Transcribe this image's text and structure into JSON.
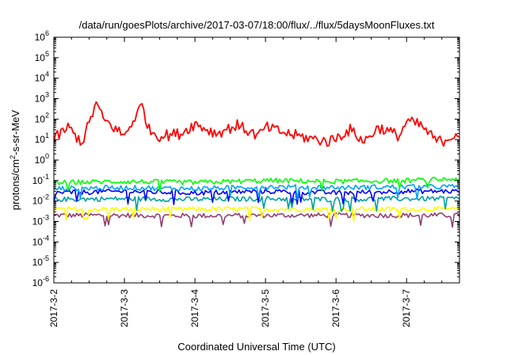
{
  "chart_data": {
    "type": "line",
    "title": "/data/run/goesPlots/archive/2017-03-07/18:00/flux/../flux/5daysMoonFluxes.txt",
    "xlabel": "Coordinated Universal Time (UTC)",
    "ylabel": {
      "base": "protons/cm",
      "sup": "2",
      "rest": "-s-sr-MeV"
    },
    "yscale": "log",
    "ylim_exp": [
      -6,
      6
    ],
    "ytick_labels": [
      {
        "base": "10",
        "exp": "-6"
      },
      {
        "base": "10",
        "exp": "-5"
      },
      {
        "base": "10",
        "exp": "-4"
      },
      {
        "base": "10",
        "exp": "-3"
      },
      {
        "base": "10",
        "exp": "-2"
      },
      {
        "base": "10",
        "exp": "-1"
      },
      {
        "base": "10",
        "exp": "0"
      },
      {
        "base": "10",
        "exp": "1"
      },
      {
        "base": "10",
        "exp": "2"
      },
      {
        "base": "10",
        "exp": "3"
      },
      {
        "base": "10",
        "exp": "4"
      },
      {
        "base": "10",
        "exp": "5"
      },
      {
        "base": "10",
        "exp": "6"
      }
    ],
    "xlim": [
      "2017-03-02",
      "2017-03-07 18:00"
    ],
    "xtick_labels": [
      "2017-3-2",
      "2017-3-3",
      "2017-3-4",
      "2017-3-5",
      "2017-3-6",
      "2017-3-7"
    ],
    "grid": false,
    "legend": "none",
    "series": [
      {
        "color": "#ff0000",
        "t": [
          0,
          0.2,
          0.4,
          0.6,
          0.7,
          1.0,
          1.25,
          1.35,
          1.5,
          1.8,
          2.0,
          2.3,
          2.6,
          2.9,
          3.0,
          3.3,
          3.6,
          3.9,
          4.2,
          4.4,
          4.6,
          4.9,
          5.0,
          5.2,
          5.4,
          5.5,
          5.7,
          5.75
        ],
        "values": [
          10,
          40,
          7,
          600,
          100,
          15,
          500,
          30,
          15,
          20,
          60,
          20,
          50,
          15,
          40,
          20,
          12,
          8,
          30,
          8,
          40,
          15,
          80,
          50,
          10,
          8,
          20,
          18
        ]
      },
      {
        "color": "#00ff00",
        "t": [
          0,
          1,
          2,
          3,
          4,
          5,
          5.75
        ],
        "values": [
          0.08,
          0.09,
          0.08,
          0.1,
          0.09,
          0.1,
          0.12
        ]
      },
      {
        "color": "#00a0ff",
        "t": [
          0,
          1,
          2,
          3,
          4,
          5,
          5.75
        ],
        "values": [
          0.04,
          0.045,
          0.04,
          0.05,
          0.045,
          0.05,
          0.05
        ]
      },
      {
        "color": "#0000ff",
        "t": [
          0,
          1,
          2,
          3,
          4,
          5,
          5.75
        ],
        "values": [
          0.025,
          0.03,
          0.025,
          0.03,
          0.025,
          0.03,
          0.03
        ]
      },
      {
        "color": "#00a0a0",
        "t": [
          0,
          1,
          2,
          3,
          4,
          5,
          5.75
        ],
        "values": [
          0.012,
          0.013,
          0.012,
          0.013,
          0.012,
          0.013,
          0.013
        ]
      },
      {
        "color": "#ffff00",
        "t": [
          0,
          1,
          2,
          3,
          4,
          5,
          5.75
        ],
        "values": [
          0.004,
          0.004,
          0.004,
          0.004,
          0.004,
          0.004,
          0.004
        ]
      },
      {
        "color": "#904070",
        "t": [
          0,
          1,
          2,
          3,
          4,
          5,
          5.75
        ],
        "values": [
          0.002,
          0.002,
          0.0019,
          0.002,
          0.002,
          0.002,
          0.002
        ]
      }
    ]
  }
}
